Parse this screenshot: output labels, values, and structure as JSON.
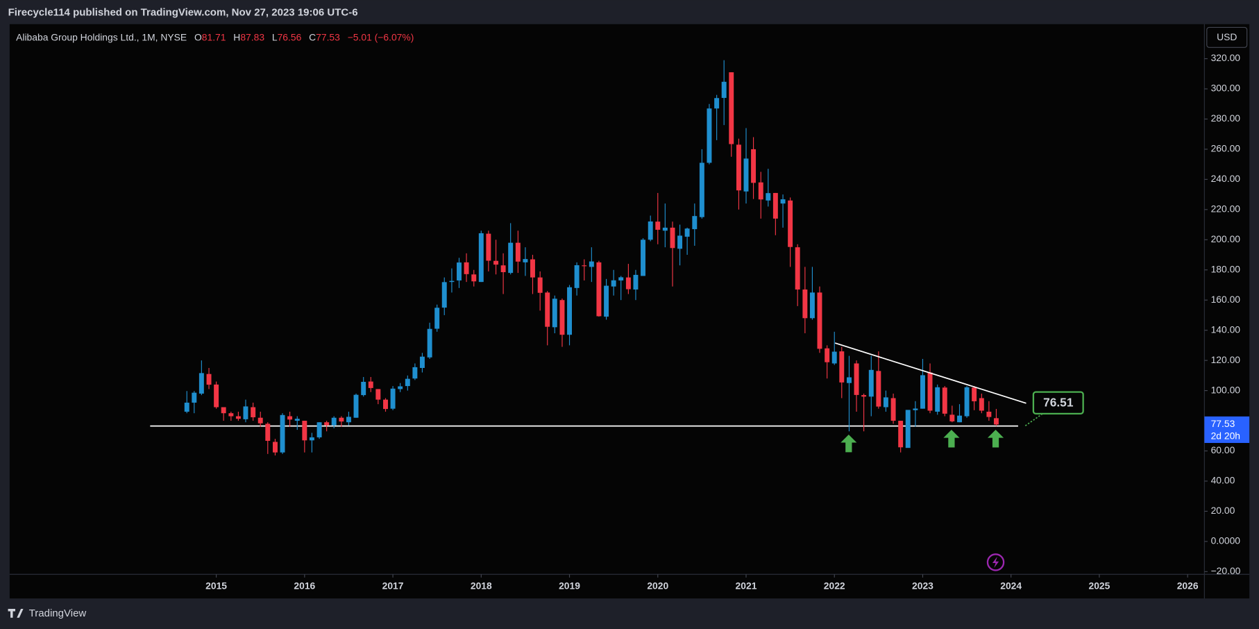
{
  "header": "Firecycle114 published on TradingView.com, Nov 27, 2023 19:06 UTC-6",
  "footer": "TradingView",
  "chart_data": {
    "type": "candlestick",
    "title": "Alibaba Group Holdings Ltd., 1M, NYSE",
    "ohlc_labels": [
      "O",
      "H",
      "L",
      "C"
    ],
    "change_label": "−5.01 (−6.07%)",
    "currency": "USD",
    "countdown": "2d 20h",
    "support": 76.51,
    "up_color": "#1f8fcf",
    "down_color": "#f23645",
    "grid": false,
    "xlim": [
      2012.66,
      2026.19
    ],
    "xticks": [
      2015,
      2016,
      2017,
      2018,
      2019,
      2020,
      2021,
      2022,
      2023,
      2024,
      2025,
      2026
    ],
    "ylim": [
      -21.8,
      342.9
    ],
    "yticks": [
      {
        "value": -20,
        "label": "−20.00"
      },
      {
        "value": 0,
        "label": "0.0000"
      },
      {
        "value": 20,
        "label": "20.00"
      },
      {
        "value": 40,
        "label": "40.00"
      },
      {
        "value": 60,
        "label": "60.00"
      },
      {
        "value": 80,
        "label": "80.00"
      },
      {
        "value": 100,
        "label": "100.00"
      },
      {
        "value": 120,
        "label": "120.00"
      },
      {
        "value": 140,
        "label": "140.00"
      },
      {
        "value": 160,
        "label": "160.00"
      },
      {
        "value": 180,
        "label": "180.00"
      },
      {
        "value": 200,
        "label": "200.00"
      },
      {
        "value": 220,
        "label": "220.00"
      },
      {
        "value": 240,
        "label": "240.00"
      },
      {
        "value": 260,
        "label": "260.00"
      },
      {
        "value": 280,
        "label": "280.00"
      },
      {
        "value": 300,
        "label": "300.00"
      },
      {
        "value": 320,
        "label": "320.00"
      }
    ],
    "candles": [
      {
        "x": 2014.667,
        "open": 86,
        "high": 99.7,
        "low": 85,
        "close": 92
      },
      {
        "x": 2014.75,
        "open": 92,
        "high": 99.7,
        "low": 85,
        "close": 98.6
      },
      {
        "x": 2014.833,
        "open": 98,
        "high": 120,
        "low": 97,
        "close": 111.6
      },
      {
        "x": 2014.917,
        "open": 111,
        "high": 115,
        "low": 101,
        "close": 103.9
      },
      {
        "x": 2015.0,
        "open": 104,
        "high": 106,
        "low": 88,
        "close": 89
      },
      {
        "x": 2015.083,
        "open": 89,
        "high": 89,
        "low": 80,
        "close": 85
      },
      {
        "x": 2015.167,
        "open": 85,
        "high": 86,
        "low": 80,
        "close": 83
      },
      {
        "x": 2015.25,
        "open": 83,
        "high": 86,
        "low": 80,
        "close": 81.3
      },
      {
        "x": 2015.333,
        "open": 81,
        "high": 94,
        "low": 79,
        "close": 89.5
      },
      {
        "x": 2015.417,
        "open": 89,
        "high": 92,
        "low": 80,
        "close": 82.3
      },
      {
        "x": 2015.5,
        "open": 82,
        "high": 86,
        "low": 76,
        "close": 78.3
      },
      {
        "x": 2015.583,
        "open": 78,
        "high": 79,
        "low": 58,
        "close": 66.7
      },
      {
        "x": 2015.667,
        "open": 66,
        "high": 68,
        "low": 57,
        "close": 59
      },
      {
        "x": 2015.75,
        "open": 59,
        "high": 85,
        "low": 58,
        "close": 83.8
      },
      {
        "x": 2015.833,
        "open": 83,
        "high": 86,
        "low": 76,
        "close": 80.8
      },
      {
        "x": 2015.917,
        "open": 80,
        "high": 83,
        "low": 74,
        "close": 81.3
      },
      {
        "x": 2016.0,
        "open": 80,
        "high": 80,
        "low": 59,
        "close": 67
      },
      {
        "x": 2016.083,
        "open": 67,
        "high": 72,
        "low": 59,
        "close": 69
      },
      {
        "x": 2016.167,
        "open": 69,
        "high": 79,
        "low": 68,
        "close": 79
      },
      {
        "x": 2016.25,
        "open": 79,
        "high": 80,
        "low": 73,
        "close": 77
      },
      {
        "x": 2016.333,
        "open": 77,
        "high": 83,
        "low": 75,
        "close": 82
      },
      {
        "x": 2016.417,
        "open": 82,
        "high": 83,
        "low": 76,
        "close": 79.5
      },
      {
        "x": 2016.5,
        "open": 79,
        "high": 86,
        "low": 77,
        "close": 82.6
      },
      {
        "x": 2016.583,
        "open": 82,
        "high": 98,
        "low": 82,
        "close": 97.2
      },
      {
        "x": 2016.667,
        "open": 97,
        "high": 109,
        "low": 96,
        "close": 105.8
      },
      {
        "x": 2016.75,
        "open": 106,
        "high": 109,
        "low": 99,
        "close": 101.7
      },
      {
        "x": 2016.833,
        "open": 101,
        "high": 101,
        "low": 91,
        "close": 94
      },
      {
        "x": 2016.917,
        "open": 94,
        "high": 95,
        "low": 86,
        "close": 87.8
      },
      {
        "x": 2017.0,
        "open": 88,
        "high": 103,
        "low": 87,
        "close": 101.3
      },
      {
        "x": 2017.083,
        "open": 101,
        "high": 105,
        "low": 99,
        "close": 102.8
      },
      {
        "x": 2017.167,
        "open": 103,
        "high": 110,
        "low": 100,
        "close": 107.8
      },
      {
        "x": 2017.25,
        "open": 108,
        "high": 118,
        "low": 107,
        "close": 115.5
      },
      {
        "x": 2017.333,
        "open": 115,
        "high": 125,
        "low": 112,
        "close": 122.5
      },
      {
        "x": 2017.417,
        "open": 122,
        "high": 145,
        "low": 121,
        "close": 140.9
      },
      {
        "x": 2017.5,
        "open": 141,
        "high": 157,
        "low": 139,
        "close": 154.9
      },
      {
        "x": 2017.583,
        "open": 155,
        "high": 175,
        "low": 150,
        "close": 171.9
      },
      {
        "x": 2017.667,
        "open": 172,
        "high": 181,
        "low": 165,
        "close": 172.7
      },
      {
        "x": 2017.75,
        "open": 173,
        "high": 188,
        "low": 168,
        "close": 184.9
      },
      {
        "x": 2017.833,
        "open": 185,
        "high": 191,
        "low": 172,
        "close": 177.2
      },
      {
        "x": 2017.917,
        "open": 177,
        "high": 180,
        "low": 169,
        "close": 172.4
      },
      {
        "x": 2018.0,
        "open": 172,
        "high": 206,
        "low": 172,
        "close": 204.3
      },
      {
        "x": 2018.083,
        "open": 204,
        "high": 206,
        "low": 179,
        "close": 186.1
      },
      {
        "x": 2018.167,
        "open": 186,
        "high": 200,
        "low": 177,
        "close": 183.5
      },
      {
        "x": 2018.25,
        "open": 183,
        "high": 191,
        "low": 164,
        "close": 178.5
      },
      {
        "x": 2018.333,
        "open": 178,
        "high": 211,
        "low": 177,
        "close": 198
      },
      {
        "x": 2018.417,
        "open": 198,
        "high": 206,
        "low": 178,
        "close": 185.5
      },
      {
        "x": 2018.5,
        "open": 185,
        "high": 195,
        "low": 176,
        "close": 187.2
      },
      {
        "x": 2018.583,
        "open": 187,
        "high": 190,
        "low": 164,
        "close": 175
      },
      {
        "x": 2018.667,
        "open": 175,
        "high": 179,
        "low": 153,
        "close": 164.8
      },
      {
        "x": 2018.75,
        "open": 165,
        "high": 166,
        "low": 130,
        "close": 142.3
      },
      {
        "x": 2018.833,
        "open": 142,
        "high": 163,
        "low": 138,
        "close": 160.9
      },
      {
        "x": 2018.917,
        "open": 160,
        "high": 161,
        "low": 129,
        "close": 137
      },
      {
        "x": 2019.0,
        "open": 137,
        "high": 170,
        "low": 130,
        "close": 168.5
      },
      {
        "x": 2019.083,
        "open": 168,
        "high": 185,
        "low": 163,
        "close": 183.1
      },
      {
        "x": 2019.167,
        "open": 183,
        "high": 187,
        "low": 173,
        "close": 182.5
      },
      {
        "x": 2019.25,
        "open": 182,
        "high": 195,
        "low": 172,
        "close": 185.6
      },
      {
        "x": 2019.333,
        "open": 185,
        "high": 186,
        "low": 149,
        "close": 149.3
      },
      {
        "x": 2019.417,
        "open": 149,
        "high": 174,
        "low": 147,
        "close": 169.5
      },
      {
        "x": 2019.5,
        "open": 169,
        "high": 180,
        "low": 163,
        "close": 173.1
      },
      {
        "x": 2019.583,
        "open": 173,
        "high": 176,
        "low": 160,
        "close": 175.1
      },
      {
        "x": 2019.667,
        "open": 175,
        "high": 184,
        "low": 164,
        "close": 167.2
      },
      {
        "x": 2019.75,
        "open": 167,
        "high": 180,
        "low": 160,
        "close": 176.7
      },
      {
        "x": 2019.833,
        "open": 176,
        "high": 201,
        "low": 176,
        "close": 200
      },
      {
        "x": 2019.917,
        "open": 200,
        "high": 216,
        "low": 199,
        "close": 212.1
      },
      {
        "x": 2020.0,
        "open": 212,
        "high": 231,
        "low": 197,
        "close": 206.6
      },
      {
        "x": 2020.083,
        "open": 206,
        "high": 224,
        "low": 195,
        "close": 208
      },
      {
        "x": 2020.167,
        "open": 208,
        "high": 212,
        "low": 169,
        "close": 194.5
      },
      {
        "x": 2020.25,
        "open": 194,
        "high": 210,
        "low": 183,
        "close": 202.7
      },
      {
        "x": 2020.333,
        "open": 202,
        "high": 208,
        "low": 190,
        "close": 207.4
      },
      {
        "x": 2020.417,
        "open": 207,
        "high": 224,
        "low": 196,
        "close": 215.7
      },
      {
        "x": 2020.5,
        "open": 215,
        "high": 260,
        "low": 214,
        "close": 251
      },
      {
        "x": 2020.583,
        "open": 251,
        "high": 290,
        "low": 250,
        "close": 287
      },
      {
        "x": 2020.667,
        "open": 287,
        "high": 296,
        "low": 266,
        "close": 293.9
      },
      {
        "x": 2020.75,
        "open": 294,
        "high": 319,
        "low": 276,
        "close": 304.7
      },
      {
        "x": 2020.833,
        "open": 311,
        "high": 311,
        "low": 255,
        "close": 263.4
      },
      {
        "x": 2020.917,
        "open": 263,
        "high": 267,
        "low": 220,
        "close": 232.7
      },
      {
        "x": 2021.0,
        "open": 232,
        "high": 274,
        "low": 224,
        "close": 253.8
      },
      {
        "x": 2021.083,
        "open": 260,
        "high": 268,
        "low": 227,
        "close": 237.7
      },
      {
        "x": 2021.167,
        "open": 238,
        "high": 245,
        "low": 214,
        "close": 226.7
      },
      {
        "x": 2021.25,
        "open": 226,
        "high": 247,
        "low": 222,
        "close": 230.9
      },
      {
        "x": 2021.333,
        "open": 231,
        "high": 231,
        "low": 203,
        "close": 214
      },
      {
        "x": 2021.417,
        "open": 224,
        "high": 230,
        "low": 208,
        "close": 226.8
      },
      {
        "x": 2021.5,
        "open": 226,
        "high": 228,
        "low": 182,
        "close": 195.2
      },
      {
        "x": 2021.583,
        "open": 195,
        "high": 197,
        "low": 156,
        "close": 167
      },
      {
        "x": 2021.667,
        "open": 167,
        "high": 182,
        "low": 138,
        "close": 148
      },
      {
        "x": 2021.75,
        "open": 148,
        "high": 182,
        "low": 147,
        "close": 165
      },
      {
        "x": 2021.833,
        "open": 165,
        "high": 169,
        "low": 125,
        "close": 127.7
      },
      {
        "x": 2021.917,
        "open": 128,
        "high": 130,
        "low": 108,
        "close": 118.8
      },
      {
        "x": 2022.0,
        "open": 118,
        "high": 139,
        "low": 117,
        "close": 125.8
      },
      {
        "x": 2022.083,
        "open": 126,
        "high": 129,
        "low": 95,
        "close": 105.4
      },
      {
        "x": 2022.167,
        "open": 105,
        "high": 123,
        "low": 73,
        "close": 108.8
      },
      {
        "x": 2022.25,
        "open": 118,
        "high": 120,
        "low": 86,
        "close": 97.1
      },
      {
        "x": 2022.333,
        "open": 97,
        "high": 98,
        "low": 73,
        "close": 96
      },
      {
        "x": 2022.417,
        "open": 96,
        "high": 123,
        "low": 83,
        "close": 113.7
      },
      {
        "x": 2022.5,
        "open": 113,
        "high": 126,
        "low": 88,
        "close": 89.4
      },
      {
        "x": 2022.583,
        "open": 89,
        "high": 100,
        "low": 86,
        "close": 95.5
      },
      {
        "x": 2022.667,
        "open": 95,
        "high": 98,
        "low": 78,
        "close": 80
      },
      {
        "x": 2022.75,
        "open": 80,
        "high": 80,
        "low": 59,
        "close": 62.4
      },
      {
        "x": 2022.833,
        "open": 62,
        "high": 87,
        "low": 63,
        "close": 87.2
      },
      {
        "x": 2022.917,
        "open": 87,
        "high": 93,
        "low": 76,
        "close": 88.1
      },
      {
        "x": 2023.0,
        "open": 88,
        "high": 121,
        "low": 88,
        "close": 110.2
      },
      {
        "x": 2023.083,
        "open": 112,
        "high": 118,
        "low": 85,
        "close": 86.7
      },
      {
        "x": 2023.167,
        "open": 86,
        "high": 104,
        "low": 84,
        "close": 102.2
      },
      {
        "x": 2023.25,
        "open": 102,
        "high": 103,
        "low": 83,
        "close": 84.7
      },
      {
        "x": 2023.333,
        "open": 84,
        "high": 90,
        "low": 79,
        "close": 79.6
      },
      {
        "x": 2023.417,
        "open": 79,
        "high": 91,
        "low": 79,
        "close": 83.4
      },
      {
        "x": 2023.5,
        "open": 83,
        "high": 103,
        "low": 82,
        "close": 102.2
      },
      {
        "x": 2023.583,
        "open": 102,
        "high": 103,
        "low": 87,
        "close": 92.9
      },
      {
        "x": 2023.667,
        "open": 95,
        "high": 98,
        "low": 85,
        "close": 86.7
      },
      {
        "x": 2023.75,
        "open": 86,
        "high": 93,
        "low": 80,
        "close": 82.5
      },
      {
        "x": 2023.833,
        "open": 81.71,
        "high": 87.83,
        "low": 76.56,
        "close": 77.53
      }
    ]
  }
}
